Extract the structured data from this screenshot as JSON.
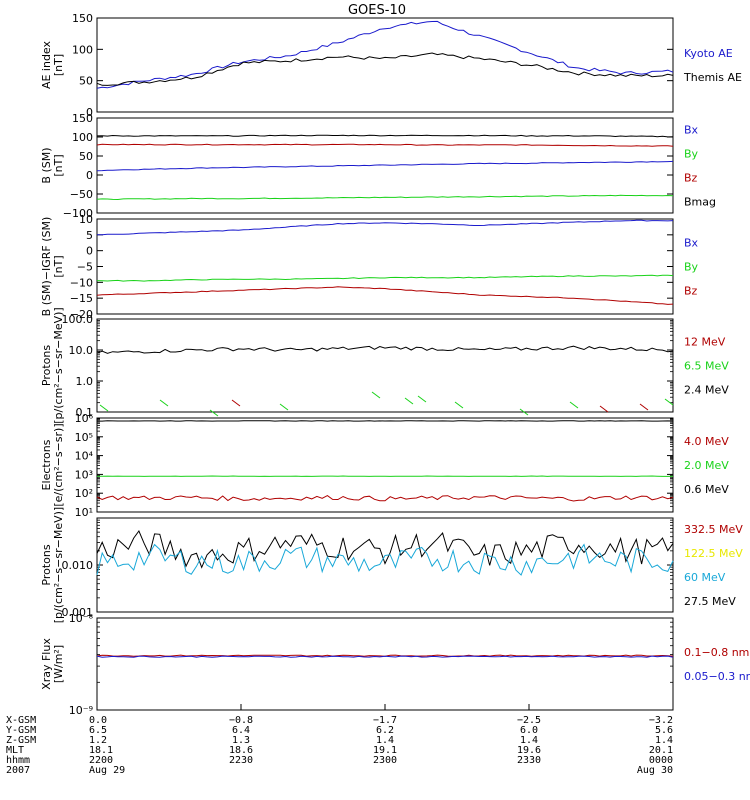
{
  "title": "GOES-10",
  "colors": {
    "black": "#000000",
    "blue": "#1a1acc",
    "red": "#b00000",
    "green": "#19d219",
    "cyan": "#19a8d8",
    "yellow": "#e8e800"
  },
  "panels": [
    {
      "id": "ae",
      "ylabel": [
        "AE index",
        "[nT]"
      ],
      "scale": "linear",
      "ylim": [
        0,
        150
      ],
      "ticks": [
        0,
        50,
        100,
        150
      ],
      "tick_labels": [
        "0",
        "50",
        "100",
        "150"
      ],
      "legend": [
        {
          "label": "Kyoto AE",
          "color": "#1a1acc"
        },
        {
          "label": "Themis AE",
          "color": "#000000"
        }
      ]
    },
    {
      "id": "bsm",
      "ylabel": [
        "B (SM)",
        "[nT]"
      ],
      "scale": "linear",
      "ylim": [
        -100,
        150
      ],
      "ticks": [
        -100,
        -50,
        0,
        50,
        100,
        150
      ],
      "tick_labels": [
        "−100",
        "−50",
        "0",
        "50",
        "100",
        "150"
      ],
      "legend": [
        {
          "label": "Bx",
          "color": "#1a1acc"
        },
        {
          "label": "By",
          "color": "#19d219"
        },
        {
          "label": "Bz",
          "color": "#b00000"
        },
        {
          "label": "Bmag",
          "color": "#000000"
        }
      ]
    },
    {
      "id": "bigrf",
      "ylabel": [
        "B (SM)−IGRF (SM)",
        "[nT]"
      ],
      "scale": "linear",
      "ylim": [
        -20,
        10
      ],
      "ticks": [
        -20,
        -15,
        -10,
        -5,
        0,
        5,
        10
      ],
      "tick_labels": [
        "−20",
        "−15",
        "−10",
        "−5",
        "0",
        "5",
        "10"
      ],
      "legend": [
        {
          "label": "Bx",
          "color": "#1a1acc"
        },
        {
          "label": "By",
          "color": "#19d219"
        },
        {
          "label": "Bz",
          "color": "#b00000"
        }
      ]
    },
    {
      "id": "protons_hi",
      "ylabel": [
        "Protons",
        "[p/(cm²−s−sr−MeV)]"
      ],
      "scale": "log",
      "ylim": [
        0.1,
        100
      ],
      "ticks": [
        0.1,
        1,
        10,
        100
      ],
      "tick_labels": [
        "0.1",
        "1.0",
        "10.0",
        "100.0"
      ],
      "legend": [
        {
          "label": "12 MeV",
          "color": "#b00000"
        },
        {
          "label": "6.5 MeV",
          "color": "#19d219"
        },
        {
          "label": "2.4 MeV",
          "color": "#000000"
        }
      ]
    },
    {
      "id": "electrons",
      "ylabel": [
        "Electrons",
        "[e/(cm²−s−sr)]"
      ],
      "scale": "log",
      "ylim": [
        10,
        1000000
      ],
      "ticks": [
        10,
        100,
        1000,
        10000,
        100000,
        1000000
      ],
      "tick_labels": [
        "10¹",
        "10²",
        "10³",
        "10⁴",
        "10⁵",
        "10⁶"
      ],
      "legend": [
        {
          "label": "4.0 MeV",
          "color": "#b00000"
        },
        {
          "label": "2.0 MeV",
          "color": "#19d219"
        },
        {
          "label": "0.6 MeV",
          "color": "#000000"
        }
      ]
    },
    {
      "id": "protons_lo",
      "ylabel": [
        "Protons",
        "[p/(cm²−s−sr−MeV)]"
      ],
      "scale": "log",
      "ylim": [
        0.001,
        0.1
      ],
      "ticks": [
        0.001,
        0.01
      ],
      "tick_labels": [
        "0.001",
        "0.010"
      ],
      "legend": [
        {
          "label": "332.5 MeV",
          "color": "#b00000"
        },
        {
          "label": "122.5 MeV",
          "color": "#e8e800"
        },
        {
          "label": "60 MeV",
          "color": "#19a8d8"
        },
        {
          "label": "27.5 MeV",
          "color": "#000000"
        }
      ]
    },
    {
      "id": "xray",
      "ylabel": [
        "Xray Flux",
        "[W/m²]"
      ],
      "scale": "log",
      "ylim": [
        1e-09,
        1e-08
      ],
      "ticks": [
        1e-09,
        1e-08
      ],
      "tick_labels": [
        "10⁻⁹",
        "10⁻⁸"
      ],
      "legend": [
        {
          "label": "0.1−0.8 nm",
          "color": "#b00000"
        },
        {
          "label": "0.05−0.3 nr",
          "color": "#1a1acc"
        }
      ]
    }
  ],
  "x_axis": {
    "row_labels": [
      "X-GSM",
      "Y-GSM",
      "Z-GSM",
      "MLT",
      "hhmm",
      "2007"
    ],
    "columns": [
      [
        "0.0",
        "6.5",
        "1.2",
        "18.1",
        "2200",
        "Aug 29"
      ],
      [
        "−0.8",
        "6.4",
        "1.3",
        "18.6",
        "2230",
        ""
      ],
      [
        "−1.7",
        "6.2",
        "1.4",
        "19.1",
        "2300",
        ""
      ],
      [
        "−2.5",
        "6.0",
        "1.4",
        "19.6",
        "2330",
        ""
      ],
      [
        "−3.2",
        "5.6",
        "1.4",
        "20.1",
        "0000",
        "Aug 30"
      ]
    ]
  },
  "chart_data": [
    {
      "type": "line",
      "panel": "ae",
      "x_hhmm": [
        "2200",
        "2210",
        "2220",
        "2230",
        "2240",
        "2250",
        "2300",
        "2310",
        "2320",
        "2330",
        "2340",
        "2350",
        "0000"
      ],
      "series": [
        {
          "name": "Kyoto AE",
          "values": [
            38,
            50,
            60,
            80,
            90,
            110,
            135,
            145,
            120,
            95,
            70,
            62,
            65
          ]
        },
        {
          "name": "Themis AE",
          "values": [
            44,
            48,
            55,
            78,
            82,
            88,
            85,
            92,
            85,
            75,
            62,
            58,
            58
          ]
        }
      ]
    },
    {
      "type": "line",
      "panel": "bsm",
      "series": [
        {
          "name": "Bx",
          "values": [
            12,
            15,
            18,
            20,
            22,
            24,
            26,
            28,
            30,
            31,
            33,
            34,
            36
          ]
        },
        {
          "name": "By",
          "values": [
            -64,
            -63,
            -62,
            -62,
            -61,
            -60,
            -59,
            -58,
            -57,
            -56,
            -55,
            -54,
            -54
          ]
        },
        {
          "name": "Bz",
          "values": [
            80,
            80,
            80,
            80,
            80,
            80,
            80,
            79,
            79,
            79,
            78,
            77,
            76
          ]
        },
        {
          "name": "Bmag",
          "values": [
            103,
            103,
            103,
            103,
            104,
            104,
            104,
            104,
            104,
            103,
            103,
            102,
            101
          ]
        }
      ]
    },
    {
      "type": "line",
      "panel": "bigrf",
      "series": [
        {
          "name": "Bx",
          "values": [
            5,
            5.5,
            6,
            6.5,
            7.5,
            8.5,
            8.8,
            8.5,
            8,
            8.5,
            9,
            9.5,
            9.5
          ]
        },
        {
          "name": "By",
          "values": [
            -9.5,
            -9.5,
            -9.2,
            -9,
            -9,
            -8.8,
            -8.5,
            -8.5,
            -8.5,
            -8.2,
            -8,
            -8,
            -7.8
          ]
        },
        {
          "name": "Bz",
          "values": [
            -14,
            -13.5,
            -13,
            -12.5,
            -12,
            -11.5,
            -12,
            -13,
            -14,
            -14.5,
            -15,
            -16,
            -17
          ]
        }
      ]
    },
    {
      "type": "line",
      "panel": "protons_hi",
      "series": [
        {
          "name": "2.4 MeV",
          "values": [
            8,
            9,
            10,
            11,
            10,
            11,
            12,
            11,
            10,
            11,
            12,
            11,
            10
          ]
        }
      ]
    },
    {
      "type": "line",
      "panel": "electrons",
      "series": [
        {
          "name": "0.6 MeV",
          "values": [
            700000,
            700000,
            700000,
            700000,
            700000,
            700000,
            700000,
            700000,
            700000,
            700000,
            700000,
            700000,
            700000
          ]
        },
        {
          "name": "2.0 MeV",
          "values": [
            800,
            800,
            800,
            800,
            800,
            800,
            800,
            800,
            800,
            800,
            800,
            800,
            800
          ]
        },
        {
          "name": "4.0 MeV",
          "values": [
            60,
            55,
            60,
            50,
            55,
            60,
            50,
            55,
            60,
            55,
            50,
            60,
            55
          ]
        }
      ]
    },
    {
      "type": "line",
      "panel": "protons_lo",
      "series": [
        {
          "name": "27.5 MeV",
          "values": [
            0.02,
            0.03,
            0.015,
            0.02,
            0.03,
            0.025,
            0.02,
            0.03,
            0.015,
            0.02,
            0.03,
            0.02,
            0.02
          ]
        },
        {
          "name": "60 MeV",
          "values": [
            0.01,
            0.015,
            0.012,
            0.011,
            0.015,
            0.012,
            0.01,
            0.014,
            0.012,
            0.011,
            0.015,
            0.012,
            0.013
          ]
        }
      ]
    },
    {
      "type": "line",
      "panel": "xray",
      "series": [
        {
          "name": "0.1−0.8 nm",
          "values": [
            3.9e-09,
            3.9e-09,
            3.9e-09,
            3.9e-09,
            3.9e-09,
            3.9e-09,
            3.9e-09,
            3.9e-09,
            3.9e-09,
            3.9e-09,
            3.9e-09,
            3.9e-09,
            3.9e-09
          ]
        },
        {
          "name": "0.05−0.3 nr",
          "values": [
            3.8e-09,
            3.8e-09,
            3.8e-09,
            3.8e-09,
            3.8e-09,
            3.8e-09,
            3.8e-09,
            3.8e-09,
            3.8e-09,
            3.8e-09,
            3.8e-09,
            3.8e-09,
            3.8e-09
          ]
        }
      ]
    }
  ]
}
